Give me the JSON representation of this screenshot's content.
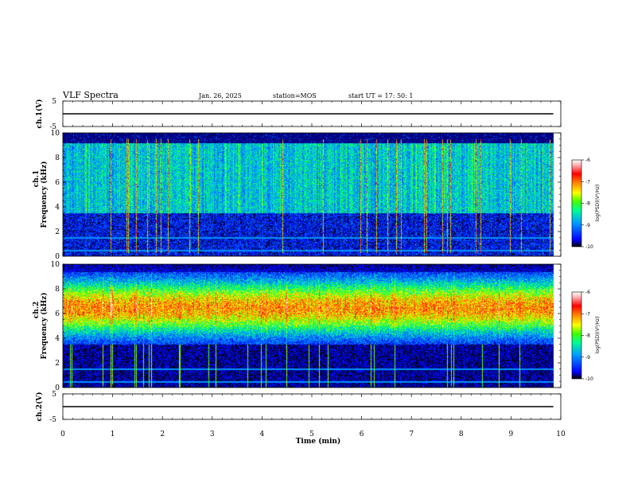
{
  "header": {
    "title": "VLF Spectra",
    "date": "Jan. 26, 2025",
    "station": "station=MOS",
    "start": "start UT =  17: 50: 1"
  },
  "chart_data": [
    {
      "type": "line",
      "name": "ch1-waveform",
      "ylabel": "ch.1(V)",
      "ylim": [
        -5,
        5
      ],
      "yticks": [
        "5",
        "-5"
      ],
      "x": [
        0,
        9.85
      ],
      "y": [
        0,
        0
      ]
    },
    {
      "type": "heatmap",
      "name": "ch1-spectrogram",
      "ylabel": "ch.1\nFrequency (kHz)",
      "ylabel_top": "ch.1",
      "ylabel_main": "Frequency (kHz)",
      "xlim": [
        0,
        10
      ],
      "ylim": [
        0,
        10
      ],
      "yticks": [
        0,
        2,
        4,
        6,
        8,
        10
      ],
      "data_xmax": 9.85,
      "colorbar": {
        "label": "log(PSD)(V²/Hz)",
        "ticks": [
          "-6",
          "-7",
          "-8",
          "-9",
          "-10"
        ],
        "range": [
          -10,
          -6
        ]
      }
    },
    {
      "type": "heatmap",
      "name": "ch2-spectrogram",
      "ylabel_top": "ch.2",
      "ylabel_main": "Frequency (kHz)",
      "xlim": [
        0,
        10
      ],
      "ylim": [
        0,
        10
      ],
      "yticks": [
        0,
        2,
        4,
        6,
        8,
        10
      ],
      "data_xmax": 9.85,
      "colorbar": {
        "label": "log(PSD)(V²/Hz)",
        "ticks": [
          "-6",
          "-7",
          "-8",
          "-9",
          "-10"
        ],
        "range": [
          -10,
          -6
        ]
      }
    },
    {
      "type": "line",
      "name": "ch2-waveform",
      "ylabel": "ch.2(V)",
      "ylim": [
        -5,
        5
      ],
      "yticks": [
        "5",
        "-5"
      ],
      "x": [
        0,
        9.85
      ],
      "y": [
        0,
        0
      ]
    }
  ],
  "xaxis": {
    "label": "Time (min)",
    "ticks": [
      0,
      1,
      2,
      3,
      4,
      5,
      6,
      7,
      8,
      9,
      10
    ]
  },
  "colors": {
    "scale": [
      "#000000",
      "#0000ff",
      "#00a0ff",
      "#00ff90",
      "#40ff00",
      "#ffff00",
      "#ff8000",
      "#ff0000",
      "#ffb0b0",
      "#ffffff"
    ]
  }
}
